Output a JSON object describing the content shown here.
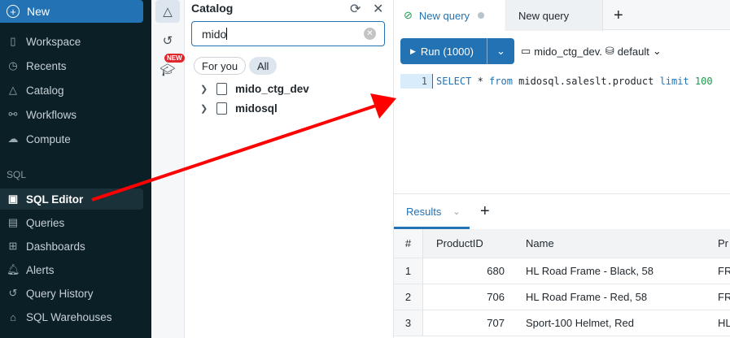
{
  "sidebar": {
    "new_label": "New",
    "section_sql": "SQL",
    "items": [
      {
        "label": "Workspace",
        "icon": "notebook-icon"
      },
      {
        "label": "Recents",
        "icon": "clock-icon"
      },
      {
        "label": "Catalog",
        "icon": "catalog-icon"
      },
      {
        "label": "Workflows",
        "icon": "workflow-icon"
      },
      {
        "label": "Compute",
        "icon": "cloud-icon"
      }
    ],
    "sql_items": [
      {
        "label": "SQL Editor",
        "active": true
      },
      {
        "label": "Queries"
      },
      {
        "label": "Dashboards"
      },
      {
        "label": "Alerts"
      },
      {
        "label": "Query History"
      },
      {
        "label": "SQL Warehouses"
      }
    ]
  },
  "rail": {
    "new_badge": "NEW"
  },
  "catalog": {
    "title": "Catalog",
    "search_value": "mido",
    "filters": [
      "For you",
      "All"
    ],
    "active_filter": "All",
    "tree": [
      {
        "label": "mido_ctg_dev"
      },
      {
        "label": "midosql"
      }
    ]
  },
  "editor": {
    "tabs": [
      "New query",
      "New query"
    ],
    "run_label": "Run (1000)",
    "catalog": "mido_ctg_dev.",
    "schema": "default",
    "line_number": "1",
    "code": {
      "kw1": "SELECT",
      "mid": " * ",
      "kw2": "from",
      "table": " midosql.saleslt.product ",
      "kw3": "limit",
      "num": " 100"
    }
  },
  "results": {
    "tab_label": "Results",
    "columns": [
      "#",
      "ProductID",
      "Name",
      "Pr"
    ],
    "rows": [
      [
        "1",
        "680",
        "HL Road Frame - Black, 58",
        "FR"
      ],
      [
        "2",
        "706",
        "HL Road Frame - Red, 58",
        "FR"
      ],
      [
        "3",
        "707",
        "Sport-100 Helmet, Red",
        "HL"
      ]
    ]
  },
  "colors": {
    "accent": "#2272b4",
    "sidebar_bg": "#0b2026",
    "annotation_arrow": "#ff0000"
  }
}
